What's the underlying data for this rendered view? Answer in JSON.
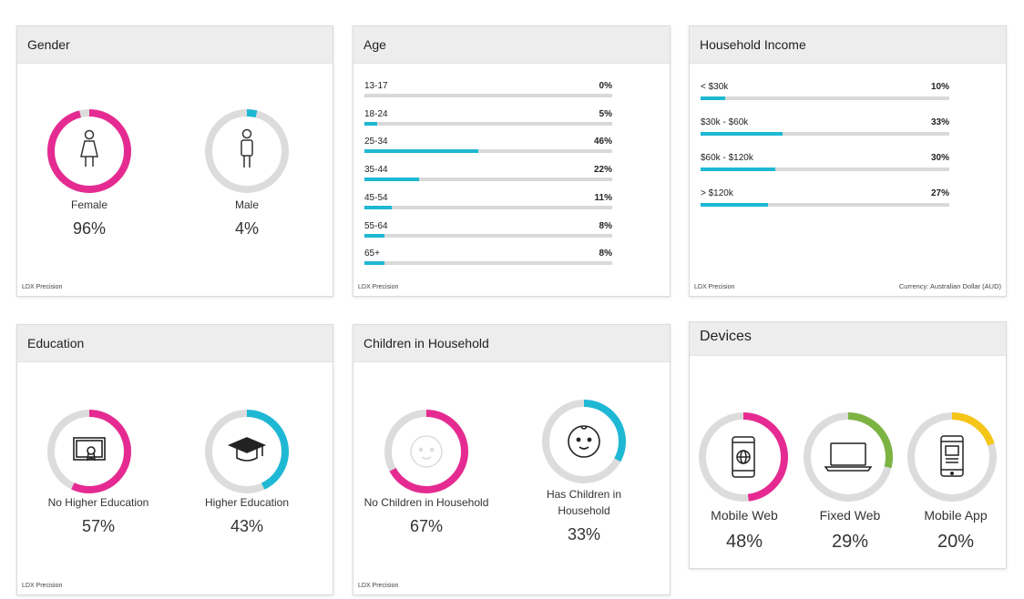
{
  "colors": {
    "pink": "#e52b91",
    "cyan": "#1eb8d4",
    "green": "#7cb342",
    "yellow": "#f5c518",
    "track": "#dcdcdc"
  },
  "gender": {
    "title": "Gender",
    "footer": "LDX Precision",
    "items": [
      {
        "label": "Female",
        "value": "96%",
        "ratio": 0.96,
        "icon": "female-icon"
      },
      {
        "label": "Male",
        "value": "4%",
        "ratio": 0.04,
        "icon": "male-icon"
      }
    ]
  },
  "age": {
    "title": "Age",
    "footer": "LDX Precision",
    "rows": [
      {
        "label": "13-17",
        "value": "0%",
        "ratio": 0.0
      },
      {
        "label": "18-24",
        "value": "5%",
        "ratio": 0.05
      },
      {
        "label": "25-34",
        "value": "46%",
        "ratio": 0.46
      },
      {
        "label": "35-44",
        "value": "22%",
        "ratio": 0.22
      },
      {
        "label": "45-54",
        "value": "11%",
        "ratio": 0.11
      },
      {
        "label": "55-64",
        "value": "8%",
        "ratio": 0.08
      },
      {
        "label": "65+",
        "value": "8%",
        "ratio": 0.08
      }
    ]
  },
  "income": {
    "title": "Household Income",
    "footer": "LDX Precision",
    "currency": "Currency: Australian Dollar (AUD)",
    "rows": [
      {
        "label": "< $30k",
        "value": "10%",
        "ratio": 0.1
      },
      {
        "label": "$30k - $60k",
        "value": "33%",
        "ratio": 0.33
      },
      {
        "label": "$60k - $120k",
        "value": "30%",
        "ratio": 0.3
      },
      {
        "label": "> $120k",
        "value": "27%",
        "ratio": 0.27
      }
    ]
  },
  "education": {
    "title": "Education",
    "footer": "LDX Precision",
    "items": [
      {
        "label": "No Higher Education",
        "value": "57%",
        "ratio": 0.57,
        "icon": "certificate-icon"
      },
      {
        "label": "Higher Education",
        "value": "43%",
        "ratio": 0.43,
        "icon": "graduation-cap-icon"
      }
    ]
  },
  "children": {
    "title": "Children in Household",
    "footer": "LDX Precision",
    "items": [
      {
        "label": "No Children in Household",
        "value": "67%",
        "ratio": 0.67,
        "icon": "baby-face-faded-icon"
      },
      {
        "label_line1": "Has Children in",
        "label_line2": "Household",
        "value": "33%",
        "ratio": 0.33,
        "icon": "baby-face-icon"
      }
    ]
  },
  "devices": {
    "title": "Devices",
    "items": [
      {
        "label": "Mobile Web",
        "value": "48%",
        "ratio": 0.48,
        "icon": "mobile-web-icon"
      },
      {
        "label": "Fixed Web",
        "value": "29%",
        "ratio": 0.29,
        "icon": "laptop-icon"
      },
      {
        "label": "Mobile App",
        "value": "20%",
        "ratio": 0.2,
        "icon": "mobile-app-icon"
      }
    ]
  },
  "chart_data": [
    {
      "type": "pie",
      "title": "Gender",
      "categories": [
        "Female",
        "Male"
      ],
      "values": [
        96,
        4
      ]
    },
    {
      "type": "bar",
      "title": "Age",
      "categories": [
        "13-17",
        "18-24",
        "25-34",
        "35-44",
        "45-54",
        "55-64",
        "65+"
      ],
      "values": [
        0,
        5,
        46,
        22,
        11,
        8,
        8
      ]
    },
    {
      "type": "bar",
      "title": "Household Income",
      "categories": [
        "< $30k",
        "$30k - $60k",
        "$60k - $120k",
        "> $120k"
      ],
      "values": [
        10,
        33,
        30,
        27
      ]
    },
    {
      "type": "pie",
      "title": "Education",
      "categories": [
        "No Higher Education",
        "Higher Education"
      ],
      "values": [
        57,
        43
      ]
    },
    {
      "type": "pie",
      "title": "Children in Household",
      "categories": [
        "No Children in Household",
        "Has Children in Household"
      ],
      "values": [
        67,
        33
      ]
    },
    {
      "type": "pie",
      "title": "Devices",
      "categories": [
        "Mobile Web",
        "Fixed Web",
        "Mobile App"
      ],
      "values": [
        48,
        29,
        20
      ]
    }
  ]
}
